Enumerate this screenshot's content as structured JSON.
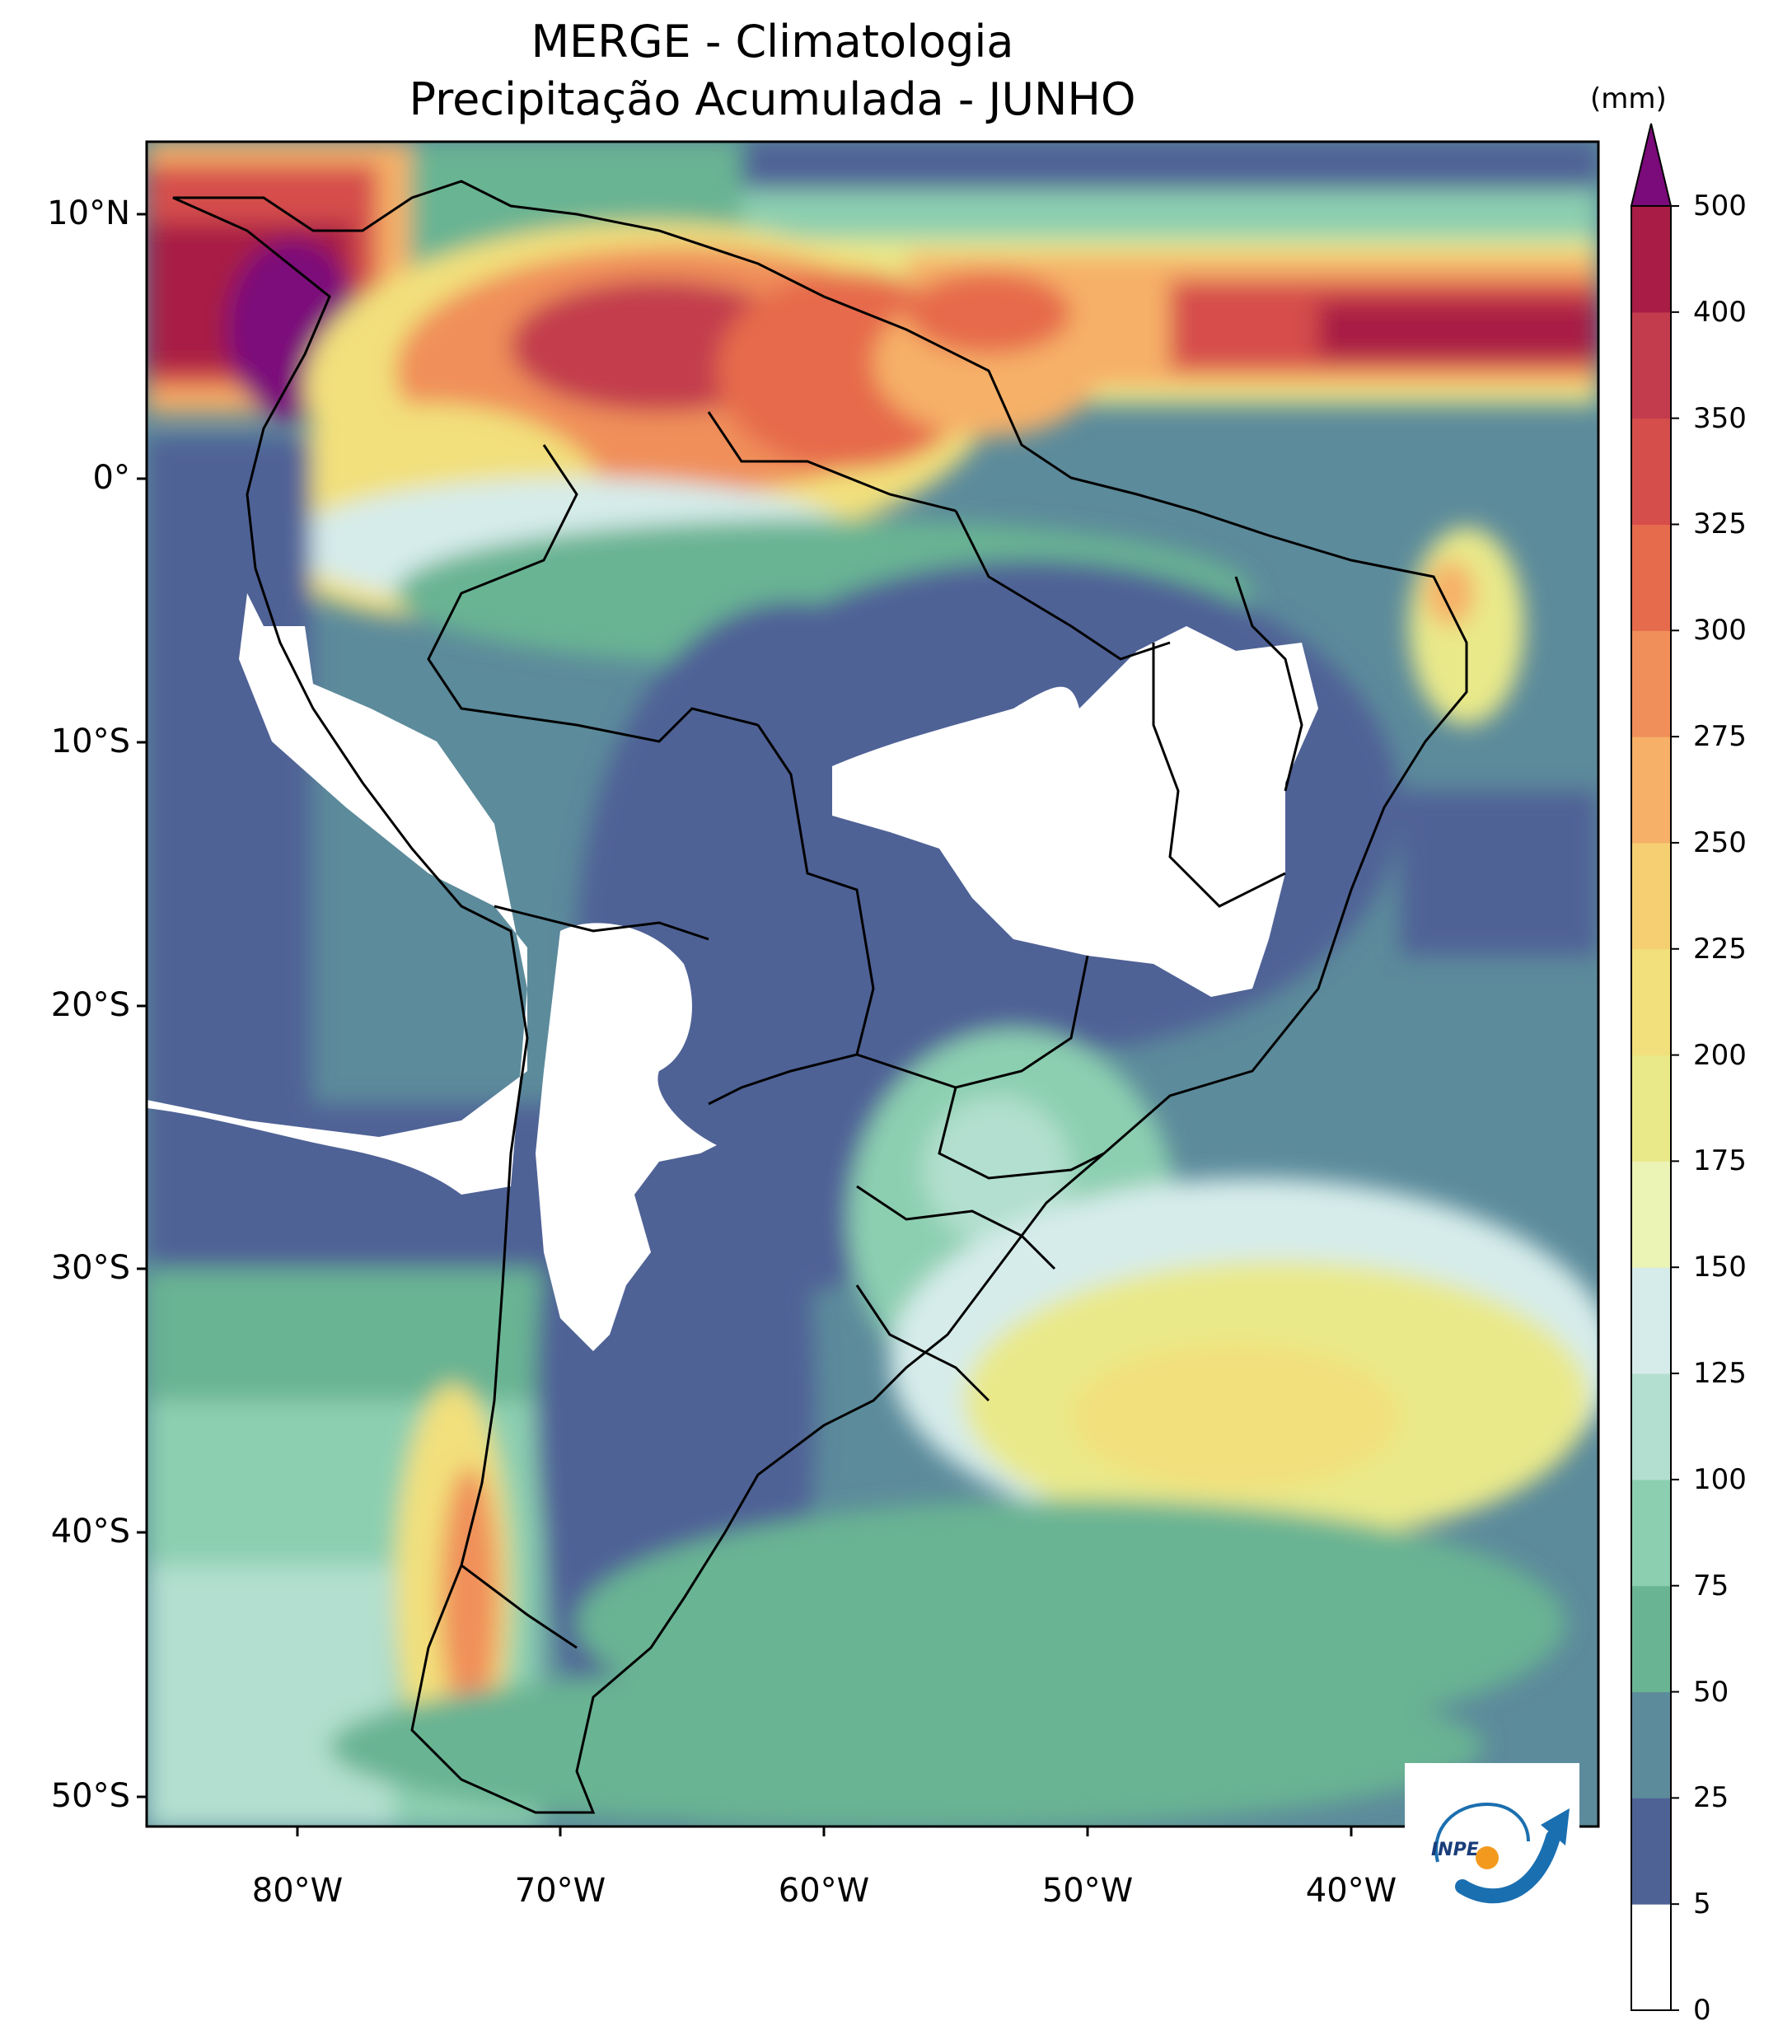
{
  "title": {
    "line1": "MERGE - Climatologia",
    "line2": "Precipitação Acumulada - JUNHO"
  },
  "map": {
    "lat_ticks": [
      "10°N",
      "0°",
      "10°S",
      "20°S",
      "30°S",
      "40°S",
      "50°S"
    ],
    "lon_ticks": [
      "80°W",
      "70°W",
      "60°W",
      "50°W",
      "40°W"
    ]
  },
  "colorbar": {
    "units": "(mm)",
    "ticks": [
      "0",
      "5",
      "25",
      "50",
      "75",
      "100",
      "125",
      "150",
      "175",
      "200",
      "225",
      "250",
      "275",
      "300",
      "325",
      "350",
      "400",
      "500"
    ],
    "colors": [
      "#ffffff",
      "#4f6296",
      "#5c8b9b",
      "#69b493",
      "#8ccfb0",
      "#b2dfcf",
      "#d6ecea",
      "#ebf3b5",
      "#e9e98a",
      "#f2e07c",
      "#f6cf72",
      "#f6b067",
      "#f08f5a",
      "#e66a4c",
      "#d64e4c",
      "#c33c4d",
      "#a81c45"
    ],
    "over_color": "#7b0a7a"
  },
  "logo": {
    "text": "INPE"
  }
}
